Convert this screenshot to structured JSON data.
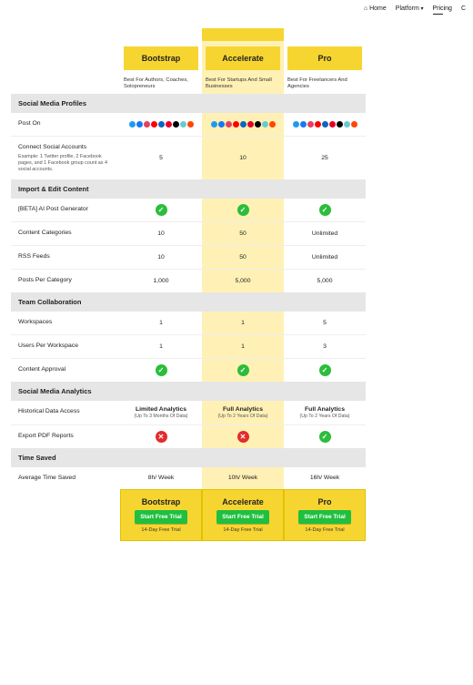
{
  "nav": {
    "items": [
      {
        "label": "Home",
        "icon_glyph": "⌂"
      },
      {
        "label": "Platform",
        "caret": true
      },
      {
        "label": "Pricing",
        "caret": true,
        "active": true
      },
      {
        "label": "C"
      }
    ]
  },
  "social_palette": [
    "#1d9bf0",
    "#1877f2",
    "#e4405f",
    "#ff0000",
    "#0a66c2",
    "#e60023",
    "#000000",
    "#69c9d0",
    "#ff4500"
  ],
  "plans": [
    {
      "key": "bootstrap",
      "name": "Bootstrap",
      "subtitle": "Best For Authors, Coaches, Solopreneurs",
      "featured": false
    },
    {
      "key": "accelerate",
      "name": "Accelerate",
      "subtitle": "Best For Startups And Small Businesses",
      "featured": true
    },
    {
      "key": "pro",
      "name": "Pro",
      "subtitle": "Best For Freelancers And Agencies",
      "featured": false
    }
  ],
  "sections": [
    {
      "title": "Social Media Profiles",
      "rows": [
        {
          "label": "Post On",
          "type": "socials",
          "values": [
            "socials",
            "socials",
            "socials"
          ]
        },
        {
          "label": "Connect Social Accounts",
          "sublabel": "Example: 1 Twitter profile, 2 Facebook pages, and 1 Facebook group count as 4 social accounts.",
          "type": "text",
          "values": [
            "5",
            "10",
            "25"
          ]
        }
      ]
    },
    {
      "title": "Import & Edit Content",
      "rows": [
        {
          "label": "[BETA] AI Post Generator",
          "type": "check",
          "values": [
            true,
            true,
            true
          ]
        },
        {
          "label": "Content Categories",
          "type": "text",
          "values": [
            "10",
            "50",
            "Unlimited"
          ]
        },
        {
          "label": "RSS Feeds",
          "type": "text",
          "values": [
            "10",
            "50",
            "Unlimited"
          ]
        },
        {
          "label": "Posts Per Category",
          "type": "text",
          "values": [
            "1,000",
            "5,000",
            "5,000"
          ]
        }
      ]
    },
    {
      "title": "Team Collaboration",
      "rows": [
        {
          "label": "Workspaces",
          "type": "text",
          "values": [
            "1",
            "1",
            "5"
          ]
        },
        {
          "label": "Users Per Workspace",
          "type": "text",
          "values": [
            "1",
            "1",
            "3"
          ]
        },
        {
          "label": "Content Approval",
          "type": "check",
          "values": [
            true,
            true,
            true
          ]
        }
      ]
    },
    {
      "title": "Social Media Analytics",
      "rows": [
        {
          "label": "Historical Data Access",
          "type": "rich",
          "values": [
            {
              "title": "Limited Analytics",
              "sub": "(Up To 3 Months Of Data)"
            },
            {
              "title": "Full Analytics",
              "sub": "(Up To 2 Years Of Data)"
            },
            {
              "title": "Full Analytics",
              "sub": "(Up To 2 Years Of Data)"
            }
          ]
        },
        {
          "label": "Export PDF Reports",
          "type": "check",
          "values": [
            false,
            false,
            true
          ]
        }
      ]
    },
    {
      "title": "Time Saved",
      "rows": [
        {
          "label": "Average Time Saved",
          "type": "text",
          "values": [
            "8h/ Week",
            "10h/ Week",
            "16h/ Week"
          ]
        }
      ]
    }
  ],
  "footer": {
    "cta_label": "Start Free Trial",
    "trial_note": "14-Day Free Trial"
  }
}
